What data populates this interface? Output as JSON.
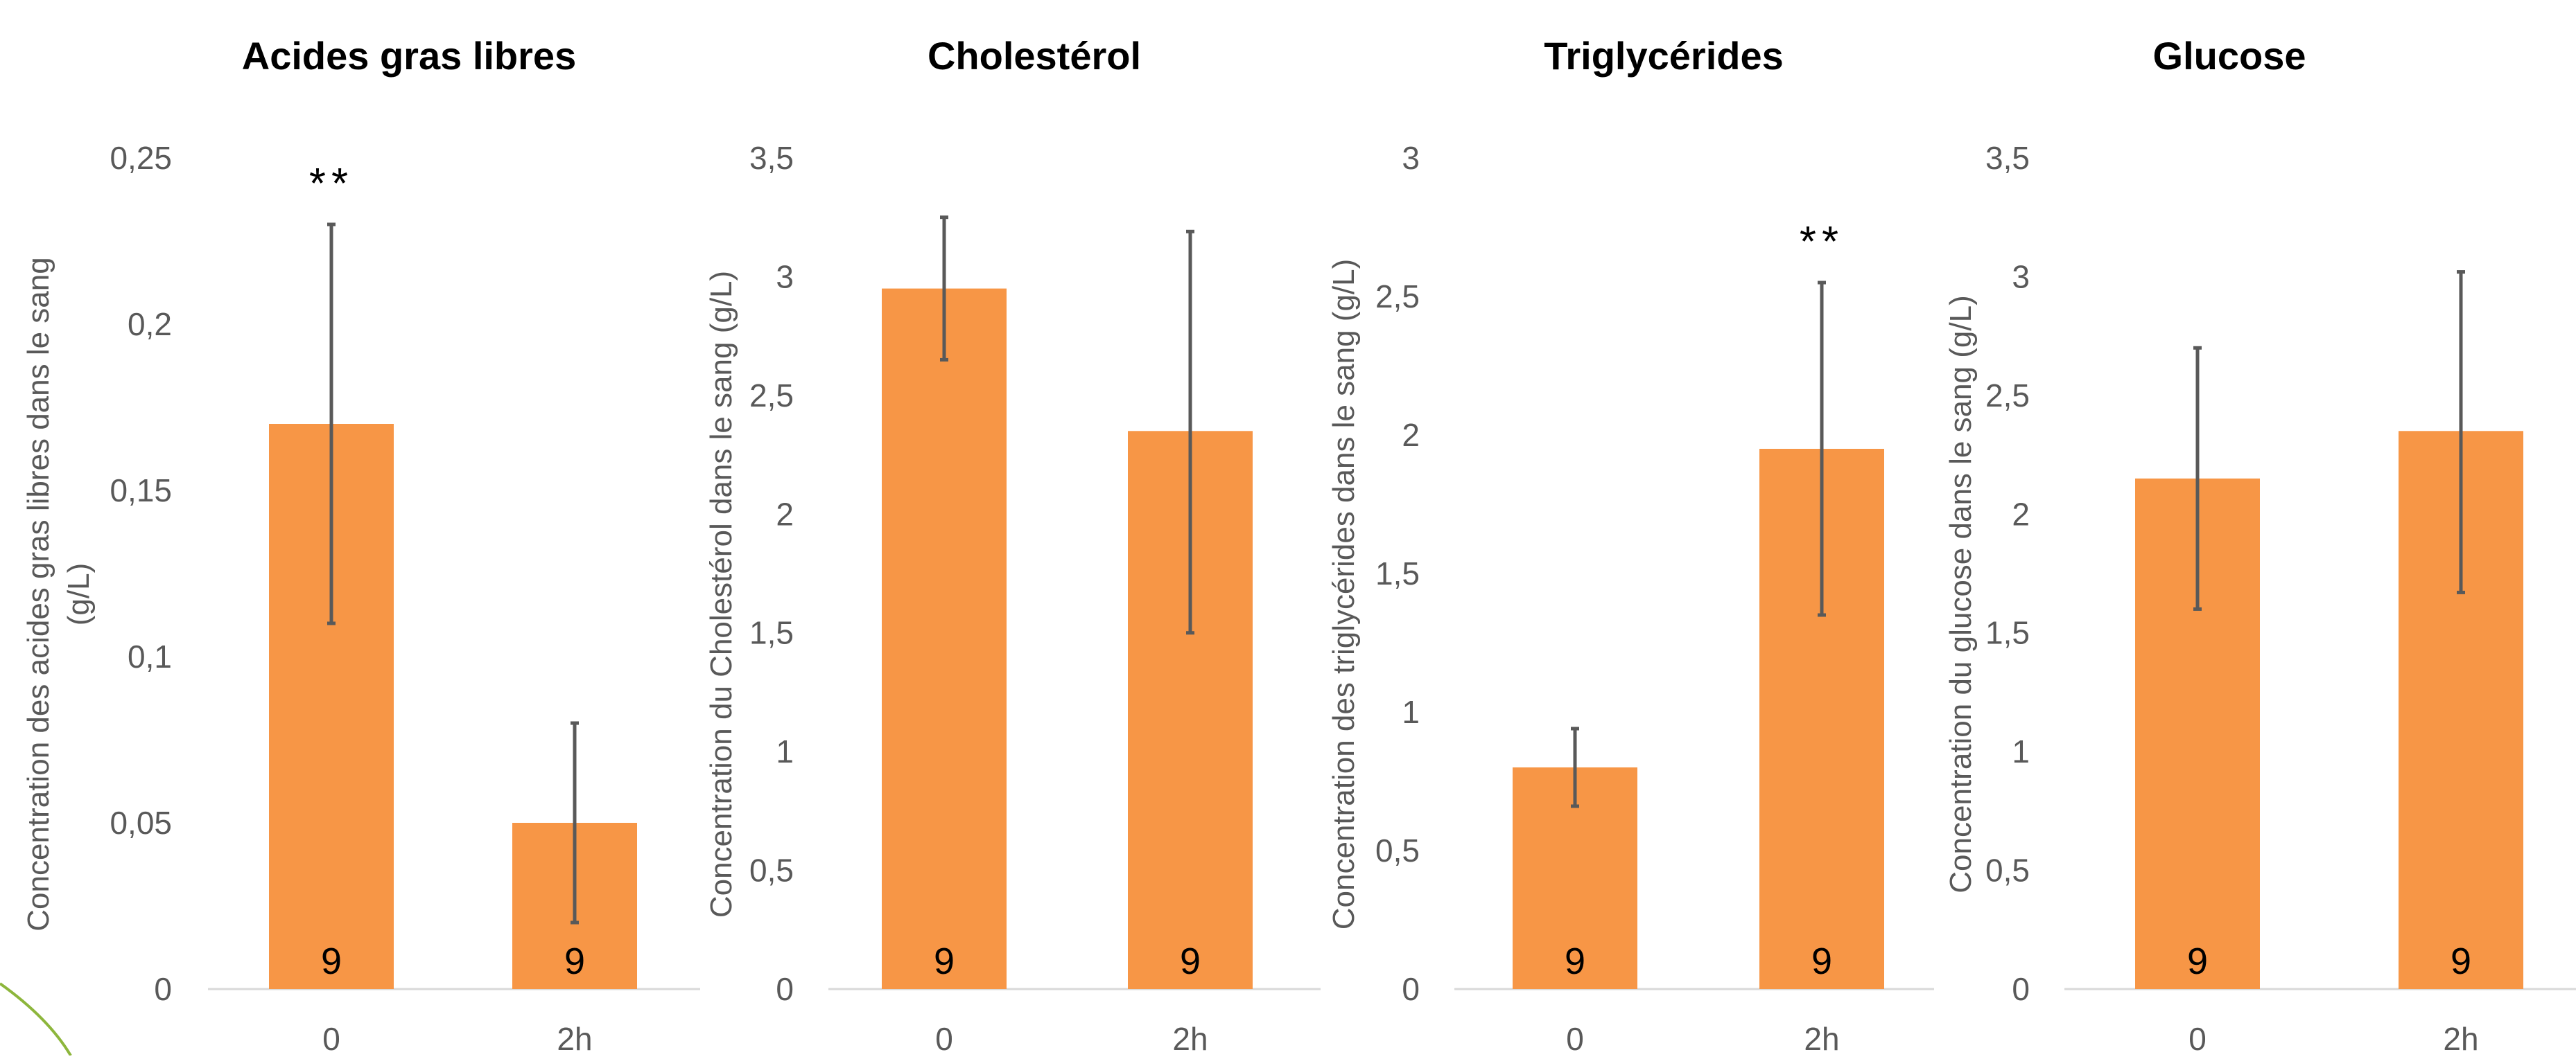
{
  "colors": {
    "bar": "#F79646",
    "error_bar": "#595959",
    "axis_line": "#D9D9D9",
    "tick_text": "#595959",
    "decor_arc": "#8DB63C"
  },
  "chart_data": [
    {
      "type": "bar",
      "title": "Acides gras libres",
      "ylabel": "Concentration des acides gras libres dans le sang (g/L)",
      "ylabel_lines": [
        "Concentration des acides gras libres dans le sang",
        "(g/L)"
      ],
      "categories": [
        "0",
        "2h"
      ],
      "values": [
        0.17,
        0.05
      ],
      "error_low": [
        0.11,
        0.02
      ],
      "error_high": [
        0.23,
        0.08
      ],
      "n_labels": [
        "9",
        "9"
      ],
      "significance": [
        "**",
        ""
      ],
      "ylim": [
        0,
        0.25
      ],
      "yticks": [
        0,
        0.05,
        0.1,
        0.15,
        0.2,
        0.25
      ],
      "ytick_labels": [
        "0",
        "0,05",
        "0,1",
        "0,15",
        "0,2",
        "0,25"
      ]
    },
    {
      "type": "bar",
      "title": "Cholestérol",
      "ylabel": "Concentration du Cholestérol dans le sang (g/L)",
      "ylabel_lines": [
        "Concentration du Cholestérol dans le sang (g/L)"
      ],
      "categories": [
        "0",
        "2h"
      ],
      "values": [
        2.95,
        2.35
      ],
      "error_low": [
        2.65,
        1.5
      ],
      "error_high": [
        3.25,
        3.19
      ],
      "n_labels": [
        "9",
        "9"
      ],
      "significance": [
        "",
        ""
      ],
      "ylim": [
        0,
        3.5
      ],
      "yticks": [
        0,
        0.5,
        1,
        1.5,
        2,
        2.5,
        3,
        3.5
      ],
      "ytick_labels": [
        "0",
        "0,5",
        "1",
        "1,5",
        "2",
        "2,5",
        "3",
        "3,5"
      ]
    },
    {
      "type": "bar",
      "title": "Triglycérides",
      "ylabel": "Concentration des triglycérides dans le sang (g/L)",
      "ylabel_lines": [
        "Concentration des triglycérides dans le sang (g/L)"
      ],
      "categories": [
        "0",
        "2h"
      ],
      "values": [
        0.8,
        1.95
      ],
      "error_low": [
        0.66,
        1.35
      ],
      "error_high": [
        0.94,
        2.55
      ],
      "n_labels": [
        "9",
        "9"
      ],
      "significance": [
        "",
        "**"
      ],
      "ylim": [
        0,
        3
      ],
      "yticks": [
        0,
        0.5,
        1,
        1.5,
        2,
        2.5,
        3
      ],
      "ytick_labels": [
        "0",
        "0,5",
        "1",
        "1,5",
        "2",
        "2,5",
        "3"
      ]
    },
    {
      "type": "bar",
      "title": "Glucose",
      "ylabel": "Concentration du glucose dans le sang (g/L)",
      "ylabel_lines": [
        "Concentration du glucose dans le sang (g/L)"
      ],
      "categories": [
        "0",
        "2h"
      ],
      "values": [
        2.15,
        2.35
      ],
      "error_low": [
        1.6,
        1.67
      ],
      "error_high": [
        2.7,
        3.02
      ],
      "n_labels": [
        "9",
        "9"
      ],
      "significance": [
        "",
        ""
      ],
      "ylim": [
        0,
        3.5
      ],
      "yticks": [
        0,
        0.5,
        1,
        1.5,
        2,
        2.5,
        3,
        3.5
      ],
      "ytick_labels": [
        "0",
        "0,5",
        "1",
        "1,5",
        "2",
        "2,5",
        "3",
        "3,5"
      ]
    }
  ]
}
